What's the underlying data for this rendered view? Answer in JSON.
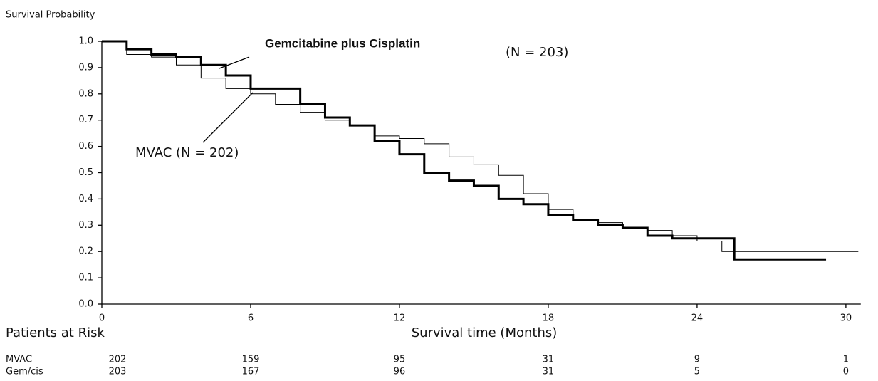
{
  "chart_data": {
    "type": "step",
    "title": "Survival Probability",
    "xlabel": "Survival time (Months)",
    "annotations": [
      "Gemcitabine plus Cisplatin",
      "(N = 203)",
      "MVAC (N = 202)"
    ],
    "xlim": [
      0,
      30.6
    ],
    "ylim": [
      0,
      1.0
    ],
    "xticks": [
      0,
      6,
      12,
      18,
      24,
      30
    ],
    "yticks": [
      {
        "value": 0,
        "label": "0.0"
      },
      0.1,
      0.2,
      0.3,
      0.4,
      0.5,
      0.6,
      0.7,
      0.8,
      0.9,
      {
        "value": 1.0,
        "label": "1.0"
      }
    ],
    "grid": false,
    "series": [
      {
        "name": "Gem/cis",
        "color": "#000000",
        "width": 3,
        "x": [
          0,
          1,
          2,
          3,
          4,
          5,
          6,
          7,
          8,
          9,
          10,
          11,
          12,
          13,
          14,
          15,
          16,
          17,
          18,
          19,
          20,
          21,
          22,
          23,
          24,
          25.5,
          29.2
        ],
        "values": [
          1.0,
          0.97,
          0.95,
          0.94,
          0.91,
          0.87,
          0.82,
          0.82,
          0.76,
          0.71,
          0.68,
          0.62,
          0.57,
          0.5,
          0.47,
          0.45,
          0.4,
          0.38,
          0.34,
          0.32,
          0.3,
          0.29,
          0.26,
          0.25,
          0.25,
          0.17,
          0.17
        ]
      },
      {
        "name": "MVAC",
        "color": "#000000",
        "width": 1,
        "x": [
          0,
          1,
          2,
          3,
          4,
          5,
          6,
          7,
          8,
          9,
          10,
          11,
          12,
          13,
          14,
          15,
          16,
          17,
          18,
          19,
          20,
          21,
          22,
          23,
          24,
          25,
          30.5
        ],
        "values": [
          1.0,
          0.95,
          0.94,
          0.91,
          0.86,
          0.82,
          0.8,
          0.76,
          0.73,
          0.7,
          0.68,
          0.64,
          0.63,
          0.61,
          0.56,
          0.53,
          0.49,
          0.42,
          0.36,
          0.32,
          0.31,
          0.29,
          0.28,
          0.26,
          0.24,
          0.2,
          0.2
        ]
      }
    ],
    "risk_table": {
      "title": "Patients at Risk",
      "rows": [
        {
          "name": "MVAC",
          "values": [
            202,
            159,
            95,
            31,
            9,
            1
          ]
        },
        {
          "name": "Gem/cis",
          "values": [
            203,
            167,
            96,
            31,
            5,
            0
          ]
        }
      ]
    }
  }
}
